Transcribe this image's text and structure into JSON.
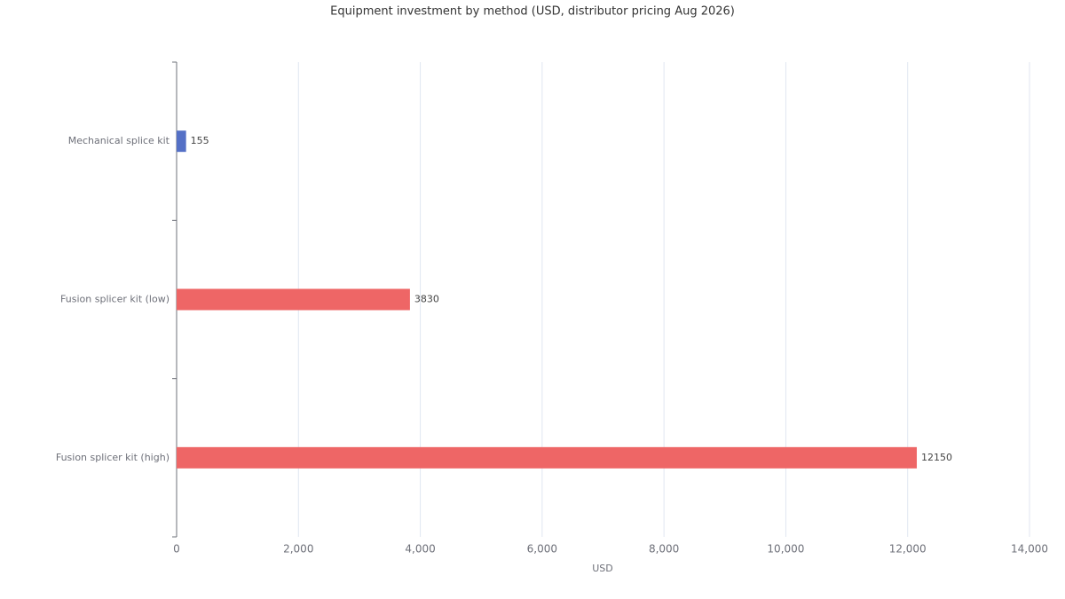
{
  "chart_data": {
    "type": "hbar",
    "title": "Equipment investment by method (USD, distributor pricing Aug 2026)",
    "categories": [
      "Mechanical splice kit",
      "Fusion splicer kit (low)",
      "Fusion splicer kit (high)"
    ],
    "values": [
      155,
      3830,
      12150
    ],
    "colors": [
      "#5470c6",
      "#ee6666",
      "#ee6666"
    ],
    "xlabel": "USD",
    "xlim": [
      0,
      14000
    ],
    "xticks": [
      0,
      {
        "value": 2000,
        "label": "2,000"
      },
      {
        "value": 4000,
        "label": "4,000"
      },
      {
        "value": 6000,
        "label": "6,000"
      },
      {
        "value": 8000,
        "label": "8,000"
      },
      {
        "value": 10000,
        "label": "10,000"
      },
      {
        "value": 12000,
        "label": "12,000"
      },
      {
        "value": 14000,
        "label": "14,000"
      }
    ],
    "grid": true
  }
}
